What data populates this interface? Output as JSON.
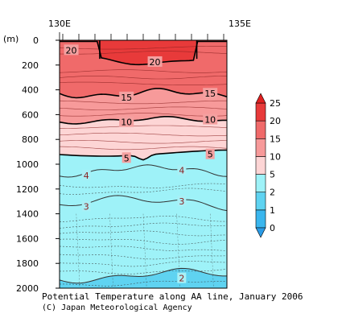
{
  "chart_data": {
    "type": "heatmap",
    "title": "Potential Temperature along AA line, January 2006",
    "credit": "(C) Japan Meteorological Agency",
    "x_axis": {
      "tick_labels": [
        "130E",
        "135E"
      ]
    },
    "y_axis": {
      "unit_label": "(m)",
      "ticks": [
        0,
        200,
        400,
        600,
        800,
        1000,
        1200,
        1400,
        1600,
        1800,
        2000
      ],
      "range": [
        0,
        2000
      ],
      "inverted": true
    },
    "colorbar": {
      "levels": [
        0,
        1,
        2,
        5,
        10,
        15,
        20,
        25
      ],
      "colors": [
        "#3ab6ee",
        "#5fd3f1",
        "#9ef2f8",
        "#fdd5d5",
        "#f79a9a",
        "#f06a6a",
        "#e83a3a"
      ]
    },
    "contours": [
      {
        "value": 20,
        "labels": [
          {
            "text": "20",
            "x_frac": 0.07,
            "depth": 80
          },
          {
            "text": "20",
            "x_frac": 0.57,
            "depth": 175
          }
        ]
      },
      {
        "value": 15,
        "labels": [
          {
            "text": "15",
            "x_frac": 0.4,
            "depth": 460
          },
          {
            "text": "15",
            "x_frac": 0.9,
            "depth": 430
          }
        ]
      },
      {
        "value": 10,
        "labels": [
          {
            "text": "10",
            "x_frac": 0.4,
            "depth": 660
          },
          {
            "text": "10",
            "x_frac": 0.9,
            "depth": 640
          }
        ]
      },
      {
        "value": 5,
        "labels": [
          {
            "text": "5",
            "x_frac": 0.4,
            "depth": 950
          },
          {
            "text": "5",
            "x_frac": 0.9,
            "depth": 920
          }
        ]
      },
      {
        "value": 4,
        "labels": [
          {
            "text": "4",
            "x_frac": 0.16,
            "depth": 1090
          },
          {
            "text": "4",
            "x_frac": 0.73,
            "depth": 1050
          }
        ]
      },
      {
        "value": 3,
        "labels": [
          {
            "text": "3",
            "x_frac": 0.16,
            "depth": 1340
          },
          {
            "text": "3",
            "x_frac": 0.73,
            "depth": 1300
          }
        ]
      },
      {
        "value": 2,
        "labels": [
          {
            "text": "2",
            "x_frac": 0.73,
            "depth": 1920
          }
        ]
      }
    ],
    "grid": false,
    "legend": "right colorbar"
  }
}
